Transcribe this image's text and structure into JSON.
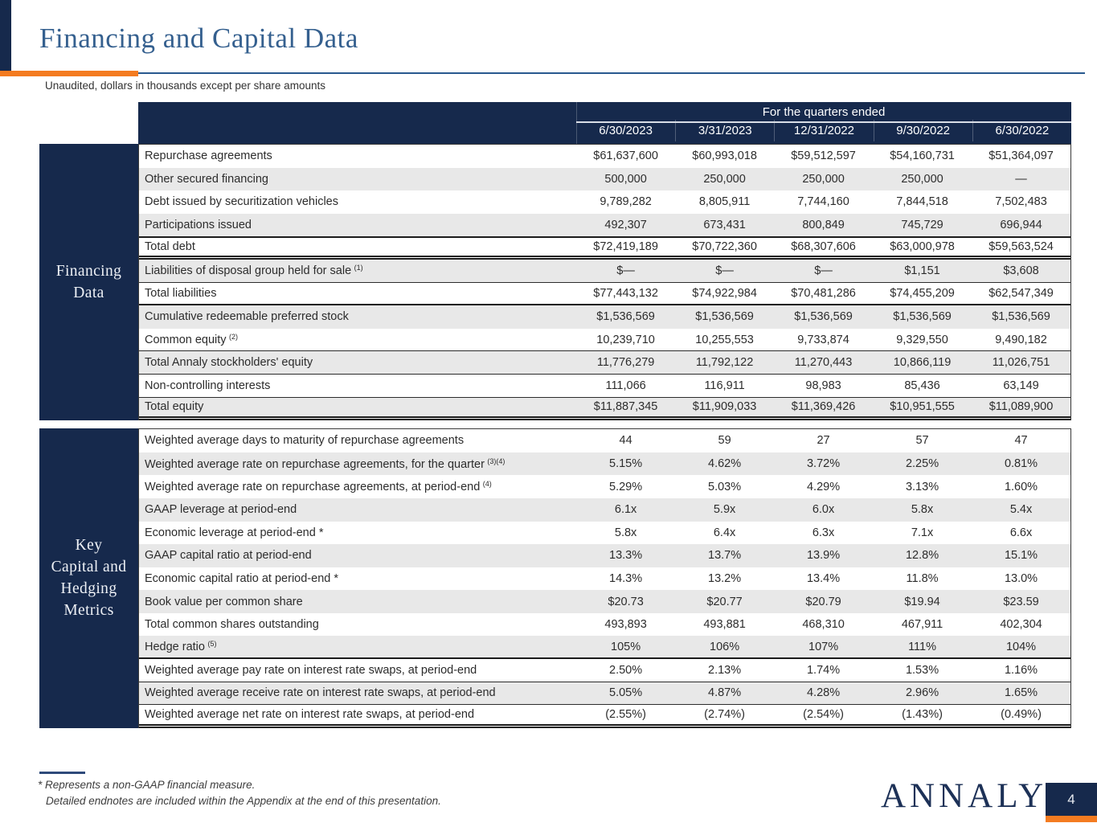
{
  "slide": {
    "title": "Financing and Capital Data",
    "subtitle": "Unaudited, dollars in thousands except per share amounts",
    "page_number": "4",
    "logo_text": "ANNALY",
    "logo_mark": "®"
  },
  "colors": {
    "navy": "#16294c",
    "orange": "#f47b20",
    "rule_blue": "#28598f",
    "title_blue": "#35608f",
    "stripe_gray": "#e8e8e8"
  },
  "table": {
    "header_span_label": "For the quarters ended",
    "columns": [
      "6/30/2023",
      "3/31/2023",
      "12/31/2022",
      "9/30/2022",
      "6/30/2022"
    ],
    "sections": [
      {
        "name": "financing-data",
        "label_lines": [
          "Financing",
          "Data"
        ],
        "rows": [
          {
            "label": "Repurchase agreements",
            "sup": "",
            "cls": "",
            "values": [
              "$61,637,600",
              "$60,993,018",
              "$59,512,597",
              "$54,160,731",
              "$51,364,097"
            ]
          },
          {
            "label": "Other secured financing",
            "sup": "",
            "cls": "gray",
            "values": [
              "500,000",
              "250,000",
              "250,000",
              "250,000",
              "—"
            ]
          },
          {
            "label": "Debt issued by securitization vehicles",
            "sup": "",
            "cls": "",
            "values": [
              "9,789,282",
              "8,805,911",
              "7,744,160",
              "7,844,518",
              "7,502,483"
            ]
          },
          {
            "label": "Participations issued",
            "sup": "",
            "cls": "gray",
            "values": [
              "492,307",
              "673,431",
              "800,849",
              "745,729",
              "696,944"
            ]
          },
          {
            "label": "Total debt",
            "sup": "",
            "cls": "bt-heavy bb-dbl",
            "values": [
              "$72,419,189",
              "$70,722,360",
              "$68,307,606",
              "$63,000,978",
              "$59,563,524"
            ]
          },
          {
            "label": "Liabilities of disposal group held for sale",
            "sup": "(1)",
            "cls": "gray bb-thin",
            "values": [
              "$—",
              "$—",
              "$—",
              "$1,151",
              "$3,608"
            ]
          },
          {
            "label": "Total liabilities",
            "sup": "",
            "cls": "bb-heavy",
            "values": [
              "$77,443,132",
              "$74,922,984",
              "$70,481,286",
              "$74,455,209",
              "$62,547,349"
            ]
          },
          {
            "label": "Cumulative redeemable preferred stock",
            "sup": "",
            "cls": "gray",
            "values": [
              "$1,536,569",
              "$1,536,569",
              "$1,536,569",
              "$1,536,569",
              "$1,536,569"
            ]
          },
          {
            "label": "Common equity",
            "sup": "(2)",
            "cls": "bb-thin",
            "values": [
              "10,239,710",
              "10,255,553",
              "9,733,874",
              "9,329,550",
              "9,490,182"
            ]
          },
          {
            "label": "Total Annaly stockholders' equity",
            "sup": "",
            "cls": "gray bb-thin",
            "values": [
              "11,776,279",
              "11,792,122",
              "11,270,443",
              "10,866,119",
              "11,026,751"
            ]
          },
          {
            "label": "Non-controlling interests",
            "sup": "",
            "cls": "bb-thin",
            "values": [
              "111,066",
              "116,911",
              "98,983",
              "85,436",
              "63,149"
            ]
          },
          {
            "label": "Total equity",
            "sup": "",
            "cls": "gray bb-dbl",
            "values": [
              "$11,887,345",
              "$11,909,033",
              "$11,369,426",
              "$10,951,555",
              "$11,089,900"
            ]
          }
        ]
      },
      {
        "name": "key-capital-hedging-metrics",
        "label_lines": [
          "Key",
          "Capital and",
          "Hedging",
          "Metrics"
        ],
        "rows": [
          {
            "label": "Weighted average days to maturity of repurchase agreements",
            "sup": "",
            "cls": "",
            "values": [
              "44",
              "59",
              "27",
              "57",
              "47"
            ]
          },
          {
            "label": "Weighted average rate on repurchase agreements, for the quarter",
            "sup": "(3)(4)",
            "cls": "gray",
            "values": [
              "5.15%",
              "4.62%",
              "3.72%",
              "2.25%",
              "0.81%"
            ]
          },
          {
            "label": "Weighted average rate on repurchase agreements, at period-end",
            "sup": "(4)",
            "cls": "",
            "values": [
              "5.29%",
              "5.03%",
              "4.29%",
              "3.13%",
              "1.60%"
            ]
          },
          {
            "label": "GAAP leverage at period-end",
            "sup": "",
            "cls": "gray",
            "values": [
              "6.1x",
              "5.9x",
              "6.0x",
              "5.8x",
              "5.4x"
            ]
          },
          {
            "label": "Economic leverage at period-end *",
            "sup": "",
            "cls": "",
            "values": [
              "5.8x",
              "6.4x",
              "6.3x",
              "7.1x",
              "6.6x"
            ]
          },
          {
            "label": "GAAP capital ratio at period-end",
            "sup": "",
            "cls": "gray",
            "values": [
              "13.3%",
              "13.7%",
              "13.9%",
              "12.8%",
              "15.1%"
            ]
          },
          {
            "label": "Economic capital ratio at period-end *",
            "sup": "",
            "cls": "",
            "values": [
              "14.3%",
              "13.2%",
              "13.4%",
              "11.8%",
              "13.0%"
            ]
          },
          {
            "label": "Book value per common share",
            "sup": "",
            "cls": "gray",
            "values": [
              "$20.73",
              "$20.77",
              "$20.79",
              "$19.94",
              "$23.59"
            ]
          },
          {
            "label": "Total common shares outstanding",
            "sup": "",
            "cls": "",
            "values": [
              "493,893",
              "493,881",
              "468,310",
              "467,911",
              "402,304"
            ]
          },
          {
            "label": "Hedge ratio",
            "sup": "(5)",
            "cls": "gray bb-heavy",
            "values": [
              "105%",
              "106%",
              "107%",
              "111%",
              "104%"
            ]
          },
          {
            "label": "Weighted average pay rate on interest rate swaps, at period-end",
            "sup": "",
            "cls": "bb-thin",
            "values": [
              "2.50%",
              "2.13%",
              "1.74%",
              "1.53%",
              "1.16%"
            ]
          },
          {
            "label": "Weighted average receive rate on interest rate swaps, at period-end",
            "sup": "",
            "cls": "gray bb-thin",
            "values": [
              "5.05%",
              "4.87%",
              "4.28%",
              "2.96%",
              "1.65%"
            ]
          },
          {
            "label": "Weighted average net rate on interest rate swaps, at period-end",
            "sup": "",
            "cls": "bb-dbl",
            "values": [
              "(2.55%)",
              "(2.74%)",
              "(2.54%)",
              "(1.43%)",
              "(0.49%)"
            ]
          }
        ]
      }
    ]
  },
  "footnotes": {
    "line1": "* Represents a non-GAAP financial measure.",
    "line2": "Detailed endnotes are included within the Appendix at the end of this presentation."
  }
}
